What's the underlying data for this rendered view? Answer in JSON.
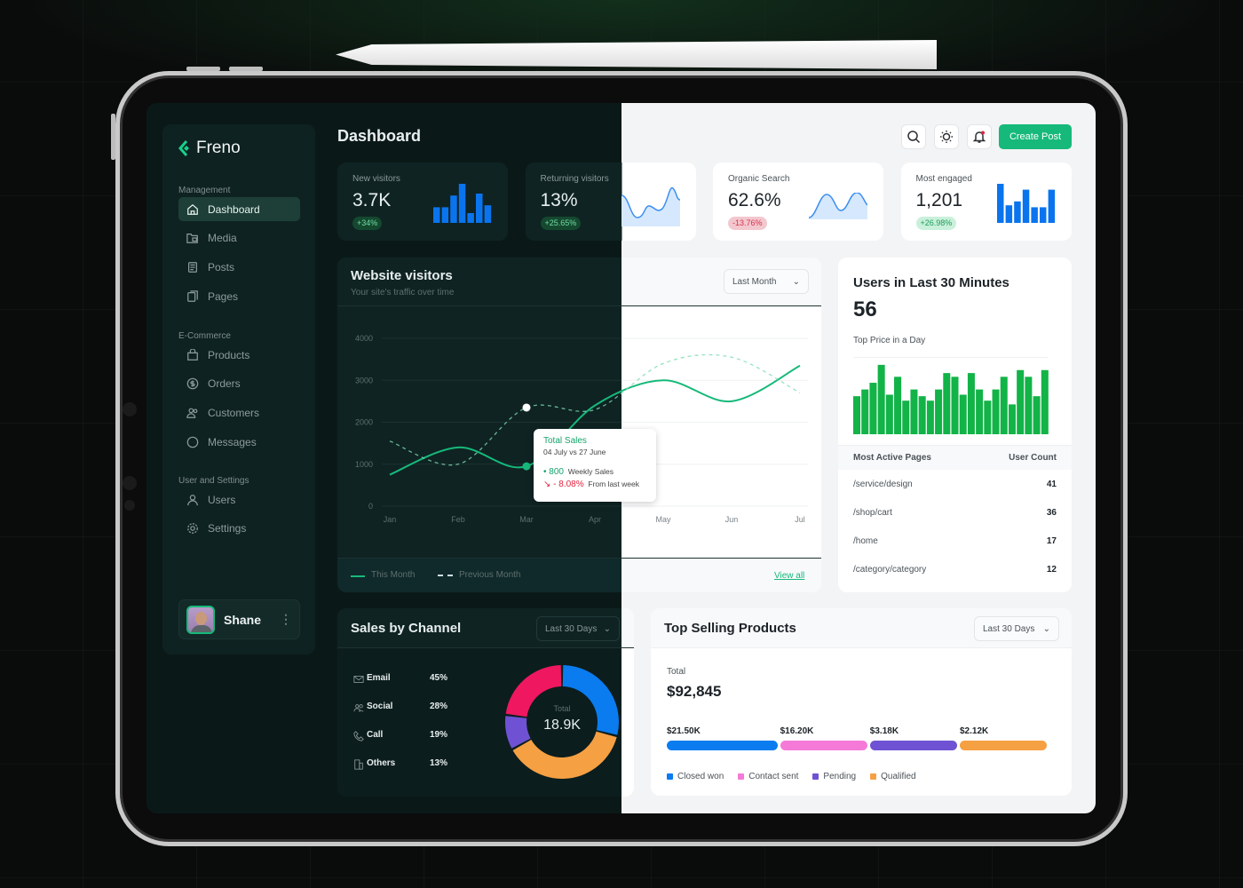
{
  "brand": {
    "name": "Freno",
    "accent": "#16b97a"
  },
  "sidebar": {
    "sections": [
      {
        "label": "Management",
        "items": [
          {
            "label": "Dashboard",
            "icon": "home-icon",
            "active": true
          },
          {
            "label": "Media",
            "icon": "media-folder-icon"
          },
          {
            "label": "Posts",
            "icon": "posts-icon"
          },
          {
            "label": "Pages",
            "icon": "pages-icon"
          }
        ]
      },
      {
        "label": "E-Commerce",
        "items": [
          {
            "label": "Products",
            "icon": "shopping-bag-icon"
          },
          {
            "label": "Orders",
            "icon": "dollar-icon"
          },
          {
            "label": "Customers",
            "icon": "customers-icon"
          },
          {
            "label": "Messages",
            "icon": "message-icon"
          }
        ]
      },
      {
        "label": "User and Settings",
        "items": [
          {
            "label": "Users",
            "icon": "user-icon"
          },
          {
            "label": "Settings",
            "icon": "gear-icon"
          }
        ]
      }
    ],
    "user": {
      "name": "Shane"
    }
  },
  "header": {
    "title": "Dashboard",
    "create_label": "Create Post"
  },
  "stats": [
    {
      "label": "New visitors",
      "value": "3.7K",
      "change": "+34%",
      "trend": "up",
      "chart": "bar",
      "bars": [
        0.4,
        0.4,
        0.7,
        1.0,
        0.25,
        0.75,
        0.45
      ]
    },
    {
      "label": "Returning visitors",
      "value": "13%",
      "change": "+25.65%",
      "trend": "up",
      "chart": "area"
    },
    {
      "label": "Organic Search",
      "value": "62.6%",
      "change": "-13.76%",
      "trend": "down",
      "chart": "area"
    },
    {
      "label": "Most engaged",
      "value": "1,201",
      "change": "+26.98%",
      "trend": "up",
      "chart": "bar",
      "bars": [
        1.0,
        0.45,
        0.55,
        0.85,
        0.4,
        0.4,
        0.85
      ]
    }
  ],
  "visitors": {
    "title": "Website visitors",
    "subtitle": "Your site's traffic over time",
    "range": "Last Month",
    "view_all": "View all",
    "legend": {
      "current": "This Month",
      "previous": "Previous Month"
    },
    "tooltip": {
      "title": "Total Sales",
      "dates": "04 July  vs  27 June",
      "value": "800",
      "value_label": "Weekly Sales",
      "change": "- 8.08%",
      "change_label": "From last week"
    }
  },
  "chart_data": {
    "type": "line",
    "categories": [
      "Jan",
      "Feb",
      "Mar",
      "Apr",
      "May",
      "Jun",
      "Jul"
    ],
    "yticks": [
      "0",
      "1000",
      "2000",
      "3000",
      "4000"
    ],
    "ylim": [
      0,
      4000
    ],
    "grid": true,
    "legend": "bottom-left",
    "series": [
      {
        "name": "This Month",
        "values": [
          750,
          1400,
          950,
          2400,
          3000,
          2500,
          3350
        ],
        "style": "solid",
        "color": "#16b97a"
      },
      {
        "name": "Previous Month",
        "values": [
          1550,
          1000,
          2350,
          2300,
          3400,
          3550,
          2700
        ],
        "style": "dashed",
        "color": "#7ddcb0"
      }
    ]
  },
  "live": {
    "title": "Users in Last 30 Minutes",
    "value": "56",
    "bars_label": "Top Price in a Day",
    "bars": [
      0.51,
      0.6,
      0.69,
      0.93,
      0.53,
      0.77,
      0.45,
      0.6,
      0.51,
      0.45,
      0.6,
      0.82,
      0.77,
      0.53,
      0.82,
      0.6,
      0.45,
      0.6,
      0.77,
      0.4,
      0.86,
      0.77,
      0.51,
      0.86
    ],
    "table": {
      "col1": "Most Active Pages",
      "col2": "User Count",
      "rows": [
        {
          "page": "/service/design",
          "count": "41"
        },
        {
          "page": "/shop/cart",
          "count": "36"
        },
        {
          "page": "/home",
          "count": "17"
        },
        {
          "page": "/category/category",
          "count": "12"
        }
      ]
    }
  },
  "channels": {
    "title": "Sales by Channel",
    "range": "Last 30 Days",
    "total_label": "Total",
    "total": "18.9K",
    "items": [
      {
        "label": "Email",
        "pct": "45%",
        "icon": "mail-icon"
      },
      {
        "label": "Social",
        "pct": "28%",
        "icon": "social-icon"
      },
      {
        "label": "Call",
        "pct": "19%",
        "icon": "phone-icon"
      },
      {
        "label": "Others",
        "pct": "13%",
        "icon": "building-icon"
      }
    ],
    "donut": [
      {
        "color": "#0a7cf0",
        "share": 0.29
      },
      {
        "color": "#f5a043",
        "share": 0.38
      },
      {
        "color": "#6e52d3",
        "share": 0.1
      },
      {
        "color": "#ee1760",
        "share": 0.23
      }
    ]
  },
  "products": {
    "title": "Top Selling Products",
    "range": "Last 30 Days",
    "total_label": "Total",
    "total": "$92,845",
    "segments": [
      {
        "label": "Closed won",
        "amount": "$21.50K",
        "color": "#0a7cf0",
        "share": 0.29
      },
      {
        "label": "Contact sent",
        "amount": "$16.20K",
        "color": "#f57ad8",
        "share": 0.23
      },
      {
        "label": "Pending",
        "amount": "$3.18K",
        "color": "#6e52d3",
        "share": 0.23
      },
      {
        "label": "Qualified",
        "amount": "$2.12K",
        "color": "#f5a043",
        "share": 0.23
      }
    ]
  }
}
